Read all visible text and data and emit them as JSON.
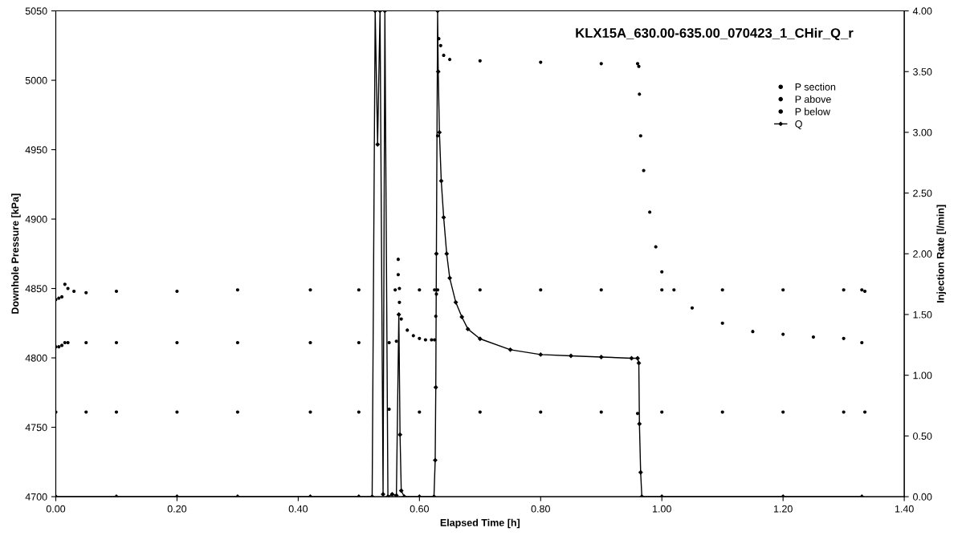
{
  "chart_data": {
    "type": "scatter",
    "title": "KLX15A_630.00-635.00_070423_1_CHir_Q_r",
    "xlabel": "Elapsed Time [h]",
    "ylabel": "Downhole Pressure [kPa]",
    "y2label": "Injection Rate [l/min]",
    "xlim": [
      0,
      1.4
    ],
    "xticks": [
      {
        "value": 0,
        "label": "0.00"
      },
      {
        "value": 0.2,
        "label": "0.20"
      },
      {
        "value": 0.4,
        "label": "0.40"
      },
      {
        "value": 0.6,
        "label": "0.60"
      },
      {
        "value": 0.8,
        "label": "0.80"
      },
      {
        "value": 1.0,
        "label": "1.00"
      },
      {
        "value": 1.2,
        "label": "1.20"
      },
      {
        "value": 1.4,
        "label": "1.40"
      }
    ],
    "ylim": [
      4700,
      5050
    ],
    "yticks": [
      4700,
      4750,
      4800,
      4850,
      4900,
      4950,
      5000,
      5050
    ],
    "y2lim": [
      0,
      4
    ],
    "y2ticks": [
      {
        "value": 0,
        "label": "0.00"
      },
      {
        "value": 0.5,
        "label": "0.50"
      },
      {
        "value": 1,
        "label": "1.00"
      },
      {
        "value": 1.5,
        "label": "1.50"
      },
      {
        "value": 2,
        "label": "2.00"
      },
      {
        "value": 2.5,
        "label": "2.50"
      },
      {
        "value": 3,
        "label": "3.00"
      },
      {
        "value": 3.5,
        "label": "3.50"
      },
      {
        "value": 4,
        "label": "4.00"
      }
    ],
    "legend": "top right",
    "grid": false,
    "series": [
      {
        "name": "P section",
        "marker": "circle",
        "color": "#000000",
        "x": [
          0,
          0.005,
          0.01,
          0.015,
          0.02,
          0.05,
          0.1,
          0.2,
          0.3,
          0.42,
          0.5,
          0.55,
          0.562,
          0.565,
          0.567,
          0.57,
          0.58,
          0.59,
          0.6,
          0.61,
          0.62,
          0.625,
          0.627,
          0.628,
          0.63,
          0.632,
          0.635,
          0.64,
          0.65,
          0.7,
          0.8,
          0.9,
          0.96,
          0.962,
          0.963,
          0.965,
          0.97,
          0.98,
          0.99,
          1.0,
          1.02,
          1.05,
          1.1,
          1.15,
          1.2,
          1.25,
          1.3,
          1.33
        ],
        "values": [
          4808,
          4808,
          4809,
          4811,
          4811,
          4811,
          4811,
          4811,
          4811,
          4811,
          4811,
          4811,
          4812,
          4871,
          4840,
          4828,
          4820,
          4816,
          4814,
          4813,
          4813,
          4813,
          4830,
          null,
          4960,
          5030,
          5025,
          5018,
          5015,
          5014,
          5013,
          5012,
          5012,
          5010,
          4990,
          4960,
          4935,
          4905,
          4880,
          4862,
          4849,
          4836,
          4825,
          4819,
          4817,
          4815,
          4814,
          4811
        ]
      },
      {
        "name": "P above",
        "marker": "circle",
        "color": "#000000",
        "x": [
          0,
          0.005,
          0.01,
          0.015,
          0.02,
          0.03,
          0.05,
          0.1,
          0.2,
          0.3,
          0.42,
          0.5,
          0.56,
          0.565,
          0.567,
          0.6,
          0.625,
          0.628,
          0.63,
          0.7,
          0.8,
          0.9,
          1.0,
          1.1,
          1.2,
          1.3,
          1.33,
          1.335
        ],
        "values": [
          4842,
          4843,
          4844,
          4853,
          4850,
          4848,
          4847,
          4848,
          4848,
          4849,
          4849,
          4849,
          4849,
          4860,
          4850,
          4849,
          4849,
          4846,
          4849,
          4849,
          4849,
          4849,
          4849,
          4849,
          4849,
          4849,
          4849,
          4848
        ]
      },
      {
        "name": "P below",
        "marker": "circle",
        "color": "#000000",
        "x": [
          0,
          0.05,
          0.1,
          0.2,
          0.3,
          0.42,
          0.5,
          0.55,
          0.6,
          0.7,
          0.8,
          0.9,
          0.96,
          1.0,
          1.1,
          1.2,
          1.3,
          1.335
        ],
        "values": [
          4761,
          4761,
          4761,
          4761,
          4761,
          4761,
          4761,
          4763,
          4761,
          4761,
          4761,
          4761,
          4760,
          4761,
          4761,
          4761,
          4761,
          4761
        ]
      },
      {
        "name": "Q",
        "type": "line",
        "axis": "y2",
        "marker": "diamond",
        "color": "#000000",
        "x": [
          0,
          0.1,
          0.2,
          0.3,
          0.42,
          0.5,
          0.522,
          0.527,
          0.531,
          0.535,
          0.54,
          0.543,
          0.548,
          0.555,
          0.562,
          0.566,
          0.568,
          0.57,
          0.575,
          0.6,
          0.624,
          0.626,
          0.627,
          0.628,
          0.63,
          0.631,
          0.633,
          0.636,
          0.64,
          0.645,
          0.65,
          0.66,
          0.67,
          0.68,
          0.7,
          0.75,
          0.8,
          0.85,
          0.9,
          0.95,
          0.96,
          0.962,
          0.963,
          0.965,
          0.967,
          1.0,
          1.2,
          1.33
        ],
        "values": [
          0,
          0,
          0,
          0,
          0,
          0,
          0,
          4,
          2.9,
          4,
          0.02,
          4,
          0,
          0.02,
          0.01,
          1.5,
          0.51,
          0.05,
          0,
          0,
          0,
          0.3,
          0.9,
          2.0,
          4.0,
          3.5,
          3.0,
          2.6,
          2.3,
          2.0,
          1.8,
          1.6,
          1.48,
          1.38,
          1.3,
          1.21,
          1.17,
          1.16,
          1.15,
          1.14,
          1.14,
          1.1,
          0.6,
          0.2,
          0,
          0,
          0,
          0
        ]
      }
    ]
  }
}
